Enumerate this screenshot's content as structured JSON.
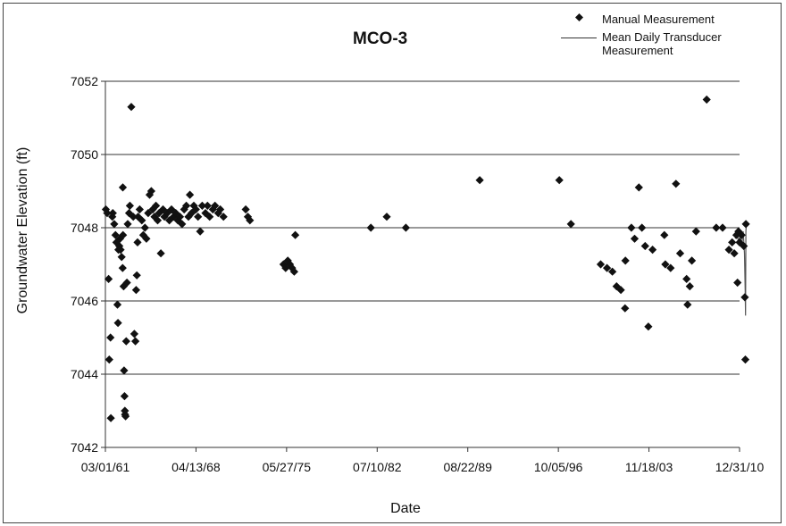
{
  "chart_data": {
    "type": "scatter",
    "title": "MCO-3",
    "xlabel": "Date",
    "ylabel": "Groundwater Elevation (ft)",
    "x_ticks": [
      "03/01/61",
      "04/13/68",
      "05/27/75",
      "07/10/82",
      "08/22/89",
      "10/05/96",
      "11/18/03",
      "12/31/10"
    ],
    "xlim": [
      "1961-03-01",
      "2010-12-31"
    ],
    "ylim": [
      7042,
      7052
    ],
    "y_ticks": [
      7042,
      7044,
      7046,
      7048,
      7050,
      7052
    ],
    "grid": "horizontal",
    "legend_position": "top-right",
    "marker_color": "#111111",
    "line_color": "#555555",
    "series": [
      {
        "name": "Manual Measurement",
        "style": "diamond",
        "points": [
          [
            "1961-03-15",
            7048.5
          ],
          [
            "1961-04-20",
            7048.4
          ],
          [
            "1961-06-01",
            7046.6
          ],
          [
            "1961-06-20",
            7044.4
          ],
          [
            "1961-07-25",
            7045.0
          ],
          [
            "1961-08-05",
            7042.8
          ],
          [
            "1961-09-15",
            7048.3
          ],
          [
            "1961-10-01",
            7048.4
          ],
          [
            "1961-11-10",
            7048.1
          ],
          [
            "1961-12-15",
            7047.8
          ],
          [
            "1962-01-10",
            7047.6
          ],
          [
            "1962-02-10",
            7045.9
          ],
          [
            "1962-02-25",
            7045.4
          ],
          [
            "1962-03-10",
            7047.4
          ],
          [
            "1962-04-05",
            7047.5
          ],
          [
            "1962-04-25",
            7047.7
          ],
          [
            "1962-05-10",
            7047.4
          ],
          [
            "1962-06-10",
            7047.2
          ],
          [
            "1962-07-10",
            7046.9
          ],
          [
            "1962-07-15",
            7049.1
          ],
          [
            "1962-07-20",
            7047.8
          ],
          [
            "1962-08-05",
            7046.4
          ],
          [
            "1962-08-20",
            7044.1
          ],
          [
            "1962-09-01",
            7043.4
          ],
          [
            "1962-09-10",
            7043.0
          ],
          [
            "1962-09-15",
            7042.9
          ],
          [
            "1962-10-01",
            7042.85
          ],
          [
            "1962-10-20",
            7044.9
          ],
          [
            "1962-11-10",
            7046.5
          ],
          [
            "1962-12-01",
            7048.1
          ],
          [
            "1963-01-10",
            7048.4
          ],
          [
            "1963-02-01",
            7048.6
          ],
          [
            "1963-03-15",
            7051.3
          ],
          [
            "1963-05-10",
            7048.3
          ],
          [
            "1963-06-10",
            7045.1
          ],
          [
            "1963-07-10",
            7044.9
          ],
          [
            "1963-08-01",
            7046.3
          ],
          [
            "1963-08-20",
            7046.7
          ],
          [
            "1963-09-10",
            7047.6
          ],
          [
            "1963-09-25",
            7048.3
          ],
          [
            "1963-11-10",
            7048.5
          ],
          [
            "1964-01-10",
            7048.2
          ],
          [
            "1964-02-20",
            7047.8
          ],
          [
            "1964-04-10",
            7048.0
          ],
          [
            "1964-05-20",
            7047.7
          ],
          [
            "1964-07-10",
            7048.4
          ],
          [
            "1964-08-20",
            7048.9
          ],
          [
            "1964-10-10",
            7049.0
          ],
          [
            "1964-11-20",
            7048.5
          ],
          [
            "1965-01-10",
            7048.3
          ],
          [
            "1965-02-20",
            7048.6
          ],
          [
            "1965-04-10",
            7048.2
          ],
          [
            "1965-05-20",
            7048.4
          ],
          [
            "1965-07-10",
            7047.3
          ],
          [
            "1965-09-10",
            7048.5
          ],
          [
            "1965-10-20",
            7048.3
          ],
          [
            "1966-01-10",
            7048.4
          ],
          [
            "1966-03-10",
            7048.2
          ],
          [
            "1966-05-10",
            7048.5
          ],
          [
            "1966-07-10",
            7048.3
          ],
          [
            "1966-09-10",
            7048.4
          ],
          [
            "1966-11-10",
            7048.2
          ],
          [
            "1967-01-10",
            7048.3
          ],
          [
            "1967-03-10",
            7048.1
          ],
          [
            "1967-05-10",
            7048.5
          ],
          [
            "1967-07-10",
            7048.6
          ],
          [
            "1967-09-10",
            7048.3
          ],
          [
            "1967-10-20",
            7048.9
          ],
          [
            "1967-12-10",
            7048.4
          ],
          [
            "1968-02-10",
            7048.6
          ],
          [
            "1968-04-10",
            7048.5
          ],
          [
            "1968-06-10",
            7048.3
          ],
          [
            "1968-08-10",
            7047.9
          ],
          [
            "1968-10-10",
            7048.6
          ],
          [
            "1969-01-10",
            7048.4
          ],
          [
            "1969-03-10",
            7048.6
          ],
          [
            "1969-05-10",
            7048.3
          ],
          [
            "1969-08-10",
            7048.5
          ],
          [
            "1969-10-10",
            7048.6
          ],
          [
            "1970-01-10",
            7048.4
          ],
          [
            "1970-03-10",
            7048.5
          ],
          [
            "1970-06-10",
            7048.3
          ],
          [
            "1972-03-10",
            7048.5
          ],
          [
            "1972-05-10",
            7048.3
          ],
          [
            "1972-07-10",
            7048.2
          ],
          [
            "1975-03-01",
            7047.0
          ],
          [
            "1975-05-01",
            7046.9
          ],
          [
            "1975-07-01",
            7047.1
          ],
          [
            "1975-09-01",
            7047.0
          ],
          [
            "1975-11-01",
            7046.9
          ],
          [
            "1976-01-01",
            7046.8
          ],
          [
            "1976-02-01",
            7047.8
          ],
          [
            "1982-01-10",
            7048.0
          ],
          [
            "1983-04-10",
            7048.3
          ],
          [
            "1984-10-10",
            7048.0
          ],
          [
            "1990-08-01",
            7049.3
          ],
          [
            "1996-11-01",
            7049.3
          ],
          [
            "1997-10-01",
            7048.1
          ],
          [
            "2000-02-01",
            7047.0
          ],
          [
            "2000-08-01",
            7046.9
          ],
          [
            "2001-01-01",
            7046.8
          ],
          [
            "2001-05-01",
            7046.4
          ],
          [
            "2001-09-01",
            7046.3
          ],
          [
            "2002-01-01",
            7045.8
          ],
          [
            "2002-01-10",
            7047.1
          ],
          [
            "2002-07-01",
            7048.0
          ],
          [
            "2002-10-01",
            7047.7
          ],
          [
            "2003-02-01",
            7049.1
          ],
          [
            "2003-05-01",
            7048.0
          ],
          [
            "2003-08-01",
            7047.5
          ],
          [
            "2003-11-01",
            7045.3
          ],
          [
            "2004-03-01",
            7047.4
          ],
          [
            "2005-02-01",
            7047.8
          ],
          [
            "2005-03-01",
            7047.0
          ],
          [
            "2005-08-01",
            7046.9
          ],
          [
            "2006-01-01",
            7049.2
          ],
          [
            "2006-05-01",
            7047.3
          ],
          [
            "2006-11-01",
            7046.6
          ],
          [
            "2006-12-01",
            7045.9
          ],
          [
            "2007-02-01",
            7046.4
          ],
          [
            "2007-04-01",
            7047.1
          ],
          [
            "2007-08-01",
            7047.9
          ],
          [
            "2008-06-01",
            7051.5
          ],
          [
            "2009-03-01",
            7048.0
          ],
          [
            "2009-09-01",
            7048.0
          ],
          [
            "2010-03-01",
            7047.4
          ],
          [
            "2010-06-01",
            7047.6
          ],
          [
            "2010-08-01",
            7047.3
          ],
          [
            "2010-10-01",
            7047.8
          ],
          [
            "2010-11-01",
            7046.5
          ],
          [
            "2010-12-01",
            7047.9
          ],
          [
            "2011-01-01",
            7047.6
          ],
          [
            "2011-03-01",
            7047.8
          ],
          [
            "2011-05-01",
            7047.5
          ],
          [
            "2011-06-01",
            7046.1
          ],
          [
            "2011-06-15",
            7044.4
          ],
          [
            "2011-07-01",
            7048.1
          ]
        ]
      },
      {
        "name": "Mean Daily Transducer Measurement",
        "style": "line",
        "points": [
          [
            "2010-09-01",
            7047.7
          ],
          [
            "2010-10-15",
            7047.9
          ],
          [
            "2010-12-01",
            7047.6
          ],
          [
            "2011-01-15",
            7047.8
          ],
          [
            "2011-03-01",
            7047.5
          ],
          [
            "2011-04-15",
            7047.9
          ],
          [
            "2011-05-20",
            7047.3
          ],
          [
            "2011-06-10",
            7046.3
          ],
          [
            "2011-06-20",
            7045.6
          ],
          [
            "2011-07-01",
            7047.9
          ],
          [
            "2011-07-15",
            7048.1
          ]
        ]
      }
    ]
  }
}
